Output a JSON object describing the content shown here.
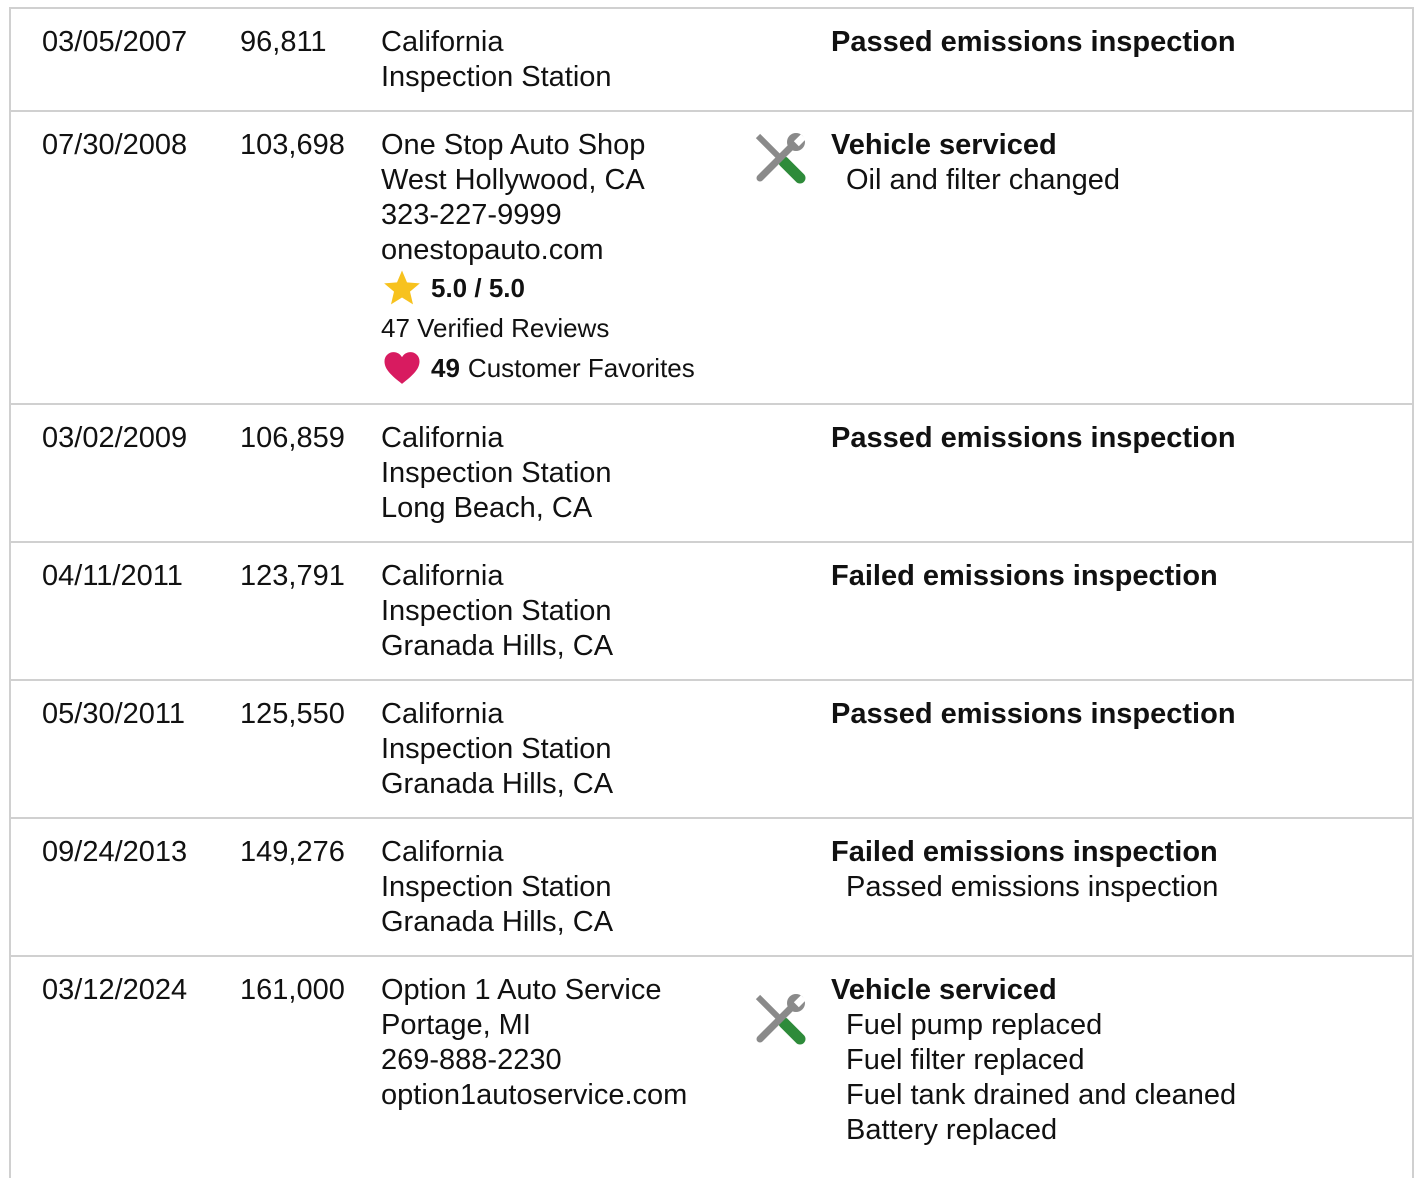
{
  "rows": [
    {
      "date": "03/05/2007",
      "mileage": "96,811",
      "source": [
        "California",
        "Inspection Station"
      ],
      "comments": {
        "title": "Passed emissions inspection"
      }
    },
    {
      "date": "07/30/2008",
      "mileage": "103,698",
      "source": [
        "One Stop Auto Shop",
        "West Hollywood, CA",
        "323-227-9999",
        "onestopauto.com"
      ],
      "rating": "5.0 / 5.0",
      "reviews": "47 Verified Reviews",
      "favorites": {
        "count": "49",
        "label": "Customer Favorites"
      },
      "comments": {
        "title": "Vehicle serviced",
        "details": [
          "Oil and filter changed"
        ]
      }
    },
    {
      "date": "03/02/2009",
      "mileage": "106,859",
      "source": [
        "California",
        "Inspection Station",
        "Long Beach, CA"
      ],
      "comments": {
        "title": "Passed emissions inspection"
      }
    },
    {
      "date": "04/11/2011",
      "mileage": "123,791",
      "source": [
        "California",
        "Inspection Station",
        "Granada Hills, CA"
      ],
      "comments": {
        "title": "Failed emissions inspection"
      }
    },
    {
      "date": "05/30/2011",
      "mileage": "125,550",
      "source": [
        "California",
        "Inspection Station",
        "Granada Hills, CA"
      ],
      "comments": {
        "title": "Passed emissions inspection"
      }
    },
    {
      "date": "09/24/2013",
      "mileage": "149,276",
      "source": [
        "California",
        "Inspection Station",
        "Granada Hills, CA"
      ],
      "comments": {
        "title": "Failed emissions inspection",
        "details": [
          "Passed emissions inspection"
        ]
      }
    },
    {
      "date": "03/12/2024",
      "mileage": "161,000",
      "source": [
        "Option 1 Auto Service",
        "Portage, MI",
        "269-888-2230",
        "option1autoservice.com"
      ],
      "comments": {
        "title": "Vehicle serviced",
        "details": [
          "Fuel pump replaced",
          "Fuel filter replaced",
          "Fuel tank drained and cleaned",
          "Battery replaced"
        ]
      }
    }
  ]
}
